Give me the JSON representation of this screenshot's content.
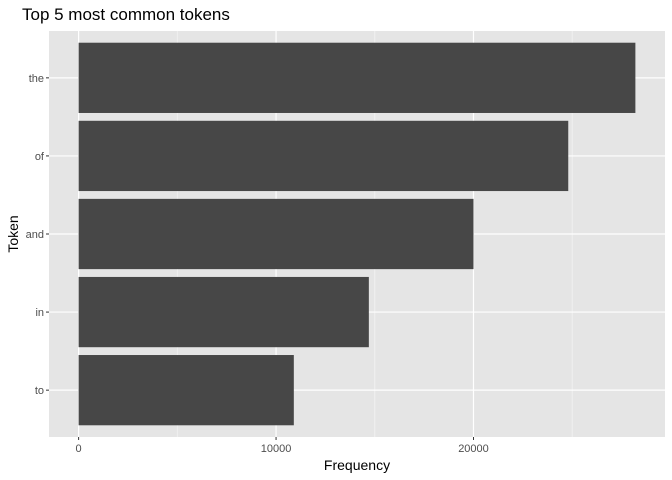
{
  "chart_data": {
    "type": "bar",
    "orientation": "horizontal",
    "title": "Top 5 most common tokens",
    "xlabel": "Frequency",
    "ylabel": "Token",
    "categories": [
      "the",
      "of",
      "and",
      "in",
      "to"
    ],
    "values": [
      28200,
      24800,
      20000,
      14700,
      10900
    ],
    "xlim": [
      -1500,
      29700
    ],
    "xticks": [
      0,
      10000,
      20000
    ],
    "xtick_labels": [
      "0",
      "10000",
      "20000"
    ],
    "grid": true,
    "theme": "ggplot2 gray",
    "colors": {
      "bar": "#474747",
      "panel": "#e5e5e5",
      "grid_major": "#ffffff",
      "grid_minor": "#f2f2f2",
      "tick_text": "#4d4d4d",
      "tick_mark": "#333333"
    }
  }
}
